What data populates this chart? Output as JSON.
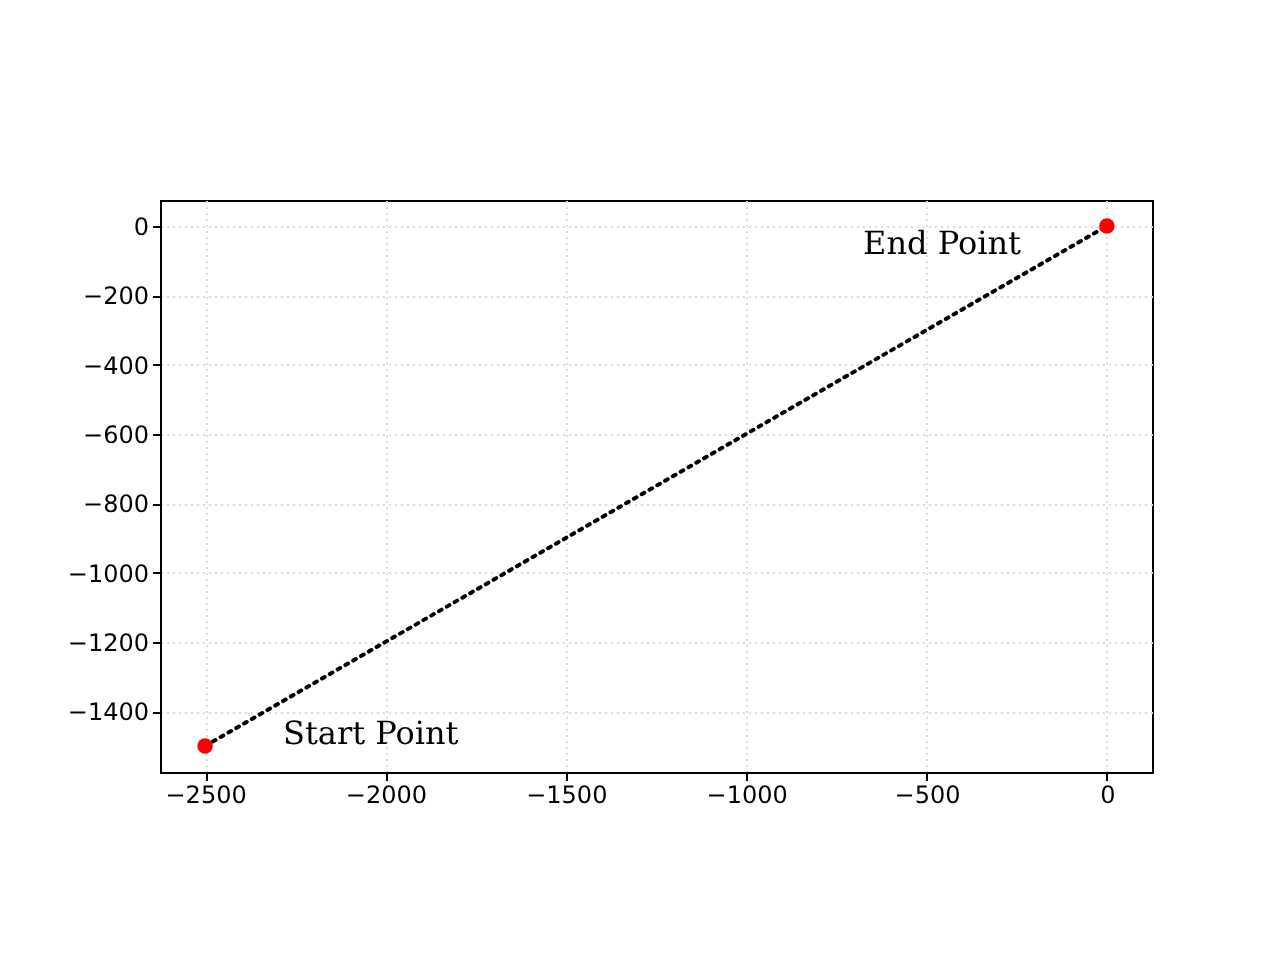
{
  "chart_data": {
    "type": "line",
    "x": [
      -2500,
      0
    ],
    "xlim": [
      -2625,
      125
    ],
    "ylim": [
      -1575,
      75
    ],
    "xticks": [
      -2500,
      -2000,
      -1500,
      -1000,
      -500,
      0
    ],
    "yticks": [
      -1400,
      -1200,
      -1000,
      -800,
      -600,
      -400,
      -200,
      0
    ],
    "grid": true,
    "series": [
      {
        "values": [
          -1500,
          0
        ],
        "color": "#000000",
        "line_style": "dotted"
      },
      {
        "type": "scatter",
        "values": [
          -1500,
          0
        ],
        "color": "#ff0000",
        "marker": "circle"
      }
    ],
    "annotations": [
      {
        "text": "Start Point",
        "x": -2500,
        "y": -1500
      },
      {
        "text": "End Point",
        "x": 0,
        "y": 0
      }
    ]
  }
}
